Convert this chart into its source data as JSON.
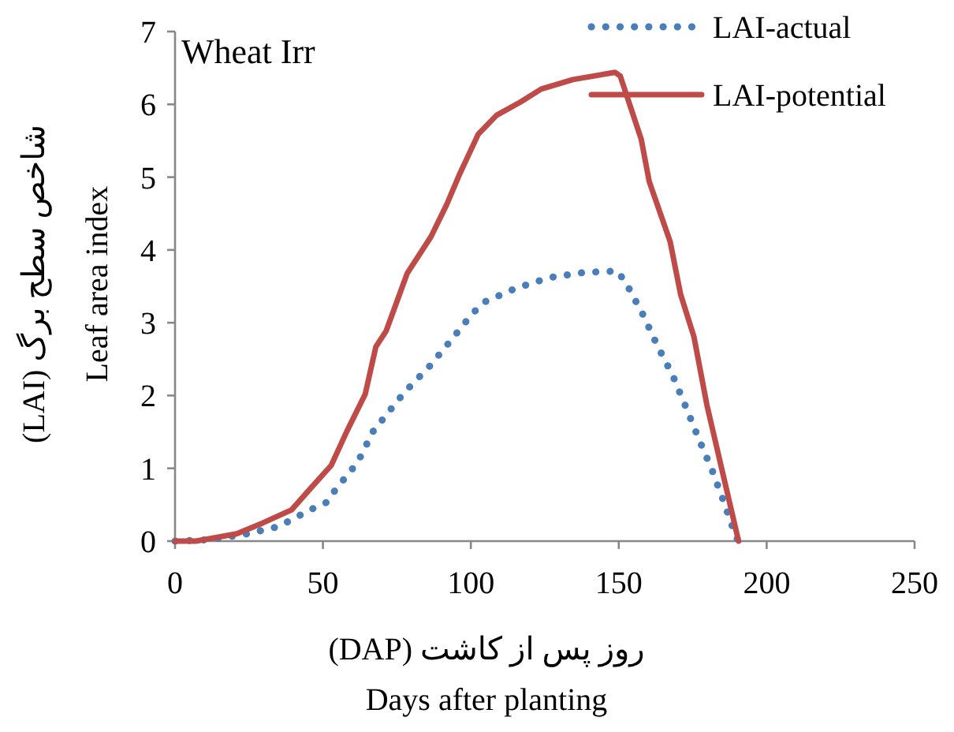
{
  "chart_data": {
    "type": "line",
    "title": "Wheat Irr",
    "xlabel": "روز پس از کاشت (DAP)\nDays after planting",
    "ylabel": "شاخص سطح برگ (LAI)\nLeaf area index",
    "xlim": [
      0,
      250
    ],
    "xticks": [
      0,
      50,
      100,
      150,
      200,
      250
    ],
    "ylim": [
      0,
      7
    ],
    "yticks": [
      0,
      1,
      2,
      3,
      4,
      5,
      6,
      7
    ],
    "grid": false,
    "legend": "top right",
    "marker": "none",
    "series": [
      {
        "name": "LAI-actual",
        "color": "#4a7ebb",
        "line_style": "dotted",
        "x": [
          0,
          11.9,
          24.4,
          35,
          45.7,
          51.1,
          54.5,
          61.7,
          67,
          74.1,
          77.7,
          86,
          93.1,
          100.2,
          104.3,
          115,
          126.5,
          138.1,
          149.6,
          152.8,
          158.2,
          162.9,
          168.3,
          172.7,
          177.1,
          181.6,
          185.5,
          189.6,
          190.5
        ],
        "values": [
          0,
          0.02,
          0.1,
          0.2,
          0.43,
          0.53,
          0.72,
          1.08,
          1.51,
          1.87,
          2.05,
          2.4,
          2.75,
          3.11,
          3.28,
          3.47,
          3.62,
          3.69,
          3.71,
          3.52,
          3.11,
          2.7,
          2.27,
          1.84,
          1.4,
          0.97,
          0.54,
          0.06,
          0
        ]
      },
      {
        "name": "LAI-potential",
        "color": "#be4b48",
        "line_style": "solid",
        "x": [
          0,
          7,
          20.8,
          29.7,
          39.4,
          45.7,
          52.8,
          58.1,
          64.3,
          67.9,
          71.4,
          78.5,
          86.5,
          91.8,
          96.3,
          102.5,
          108.7,
          116.7,
          123.8,
          134.5,
          148.7,
          150.5,
          157.6,
          160.3,
          167.4,
          170.9,
          175.4,
          179.8,
          190.5
        ],
        "values": [
          0,
          0,
          0.1,
          0.25,
          0.43,
          0.72,
          1.04,
          1.51,
          2.02,
          2.67,
          2.89,
          3.68,
          4.18,
          4.62,
          5.05,
          5.59,
          5.85,
          6.03,
          6.21,
          6.34,
          6.44,
          6.39,
          5.52,
          4.94,
          4.11,
          3.39,
          2.81,
          1.87,
          0
        ]
      }
    ]
  }
}
